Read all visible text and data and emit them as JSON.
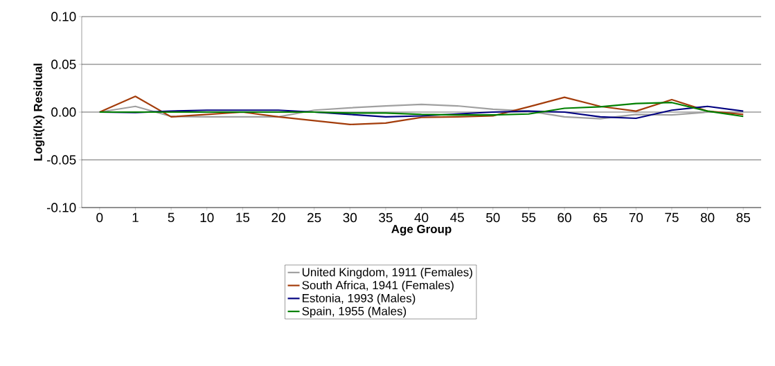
{
  "chart_data": {
    "type": "line",
    "xlabel": "Age Group",
    "ylabel": "Logit(lx) Residual",
    "categories": [
      "0",
      "1",
      "5",
      "10",
      "15",
      "20",
      "25",
      "30",
      "35",
      "40",
      "45",
      "50",
      "55",
      "60",
      "65",
      "70",
      "75",
      "80",
      "85"
    ],
    "ylim": [
      -0.1,
      0.1
    ],
    "yticks": [
      {
        "value": -0.1,
        "label": "-0.10"
      },
      {
        "value": -0.05,
        "label": "-0.05"
      },
      {
        "value": 0,
        "label": "0.00"
      },
      {
        "value": 0.05,
        "label": "0.05"
      },
      {
        "value": 0.1,
        "label": "0.10"
      }
    ],
    "grid": "y",
    "legend": "bottom",
    "marker": "none",
    "line_style": "solid",
    "series": [
      {
        "name": "United Kingdom, 1911 (Females)",
        "color": "#a0a0a0",
        "values": [
          0,
          0.006,
          -0.0045,
          -0.005,
          -0.005,
          -0.005,
          0.002,
          0.0045,
          0.0065,
          0.008,
          0.0065,
          0.003,
          0.001,
          -0.005,
          -0.007,
          -0.0025,
          -0.003,
          0,
          0
        ]
      },
      {
        "name": "South Africa, 1941 (Females)",
        "color": "#a33c0a",
        "values": [
          0,
          0.0165,
          -0.005,
          -0.0025,
          0,
          -0.005,
          -0.009,
          -0.013,
          -0.0115,
          -0.0055,
          -0.005,
          -0.004,
          0.0055,
          0.0155,
          0.006,
          0.001,
          0.013,
          0.001,
          -0.0025
        ]
      },
      {
        "name": "Estonia, 1993 (Males)",
        "color": "#000080",
        "values": [
          0,
          -0.0005,
          0.001,
          0.002,
          0.002,
          0.002,
          0,
          -0.0025,
          -0.005,
          -0.004,
          -0.002,
          0,
          0.001,
          0,
          -0.005,
          -0.0065,
          0.002,
          0.006,
          0.001
        ]
      },
      {
        "name": "Spain, 1955 (Males)",
        "color": "#008000",
        "values": [
          0,
          0,
          0,
          0,
          0,
          0,
          0,
          -0.001,
          -0.001,
          -0.0025,
          -0.003,
          -0.003,
          -0.002,
          0.004,
          0.0055,
          0.009,
          0.01,
          0.001,
          -0.0045
        ]
      }
    ]
  }
}
